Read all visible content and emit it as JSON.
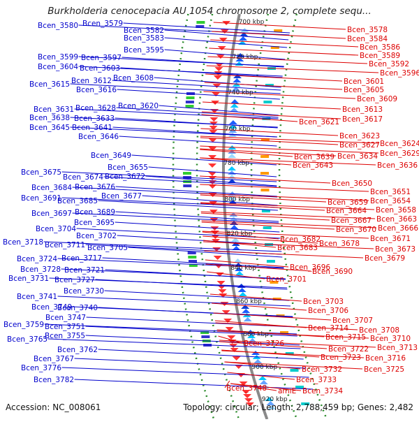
{
  "title": "Burkholderia cenocepacia AU 1054 chromosome 2, complete sequ...",
  "accession": "Accession: NC_008061",
  "topology": "Topology: circular; Length: 2,788,459 bp; Genes: 2,482",
  "colors": {
    "left_labels": "#0000cc",
    "right_labels": "#dd0000",
    "backbone": "#8a8a8a",
    "track_dots": "#2a8a2a"
  },
  "ticks": [
    "700 kbp",
    "720 kbp",
    "740 kbp",
    "760 kbp",
    "780 kbp",
    "800 kbp",
    "820 kbp",
    "840 kbp",
    "860 kbp",
    "880 kbp",
    "900 kbp",
    "920 kbp"
  ],
  "left_genes": [
    "Bcen_3580",
    "Bcen_3579",
    "Bcen_3582",
    "Bcen_3583",
    "Bcen_3595",
    "Bcen_3599",
    "Bcen_3597",
    "Bcen_3604",
    "Bcen_3603",
    "Bcen_3608",
    "Bcen_3615",
    "Bcen_3612",
    "Bcen_3616",
    "Bcen_3620",
    "Bcen_3631",
    "Bcen_3628",
    "Bcen_3638",
    "Bcen_3633",
    "Bcen_3645",
    "Bcen_3641",
    "Bcen_3646",
    "Bcen_3649",
    "Bcen_3655",
    "Bcen_3672",
    "Bcen_3675",
    "Bcen_3674",
    "Bcen_3684",
    "Bcen_3676",
    "Bcen_3691",
    "Bcen_3685",
    "Bcen_3677",
    "Bcen_3689",
    "Bcen_3697",
    "Bcen_3695",
    "Bcen_3704",
    "Bcen_3702",
    "Bcen_3718",
    "Bcen_3711",
    "Bcen_3705",
    "Bcen_3724",
    "Bcen_3717",
    "Bcen_3728",
    "Bcen_3721",
    "Bcen_3731",
    "Bcen_3727",
    "Bcen_3730",
    "Bcen_3741",
    "Bcen_3749",
    "Bcen_3740",
    "Bcen_3747",
    "Bcen_3759",
    "Bcen_3751",
    "Bcen_3765",
    "Bcen_3755",
    "Bcen_3762",
    "Bcen_3767",
    "Bcen_3776",
    "Bcen_3782"
  ],
  "right_genes": [
    "Bcen_3578",
    "Bcen_3584",
    "Bcen_3586",
    "Bcen_3589",
    "Bcen_3592",
    "Bcen_3596",
    "Bcen_3601",
    "Bcen_3605",
    "Bcen_3609",
    "Bcen_3613",
    "Bcen_3621",
    "Bcen_3617",
    "Bcen_3623",
    "Bcen_3627",
    "Bcen_3624",
    "Bcen_3634",
    "Bcen_3629",
    "Bcen_3639",
    "Bcen_3643",
    "Bcen_3636",
    "Bcen_3650",
    "Bcen_3651",
    "Bcen_3659",
    "Bcen_3654",
    "Bcen_3664",
    "Bcen_3658",
    "Bcen_3667",
    "Bcen_3663",
    "Bcen_3670",
    "Bcen_3666",
    "Bcen_3682",
    "Bcen_3671",
    "Bcen_3683",
    "Bcen_3678",
    "Bcen_3673",
    "Bcen_3679",
    "Bcen_3696",
    "Bcen_3690",
    "Bcen_3701",
    "Bcen_3703",
    "Bcen_3706",
    "Bcen_3707",
    "Bcen_3708",
    "Bcen_3714",
    "Bcen_3710",
    "Bcen_3715",
    "Bcen_3726",
    "Bcen_3713",
    "Bcen_3722",
    "Bcen_3716",
    "Bcen_3723",
    "Bcen_3725",
    "Bcen_3732",
    "Bcen_3733",
    "Bcen_3748",
    "amiE",
    "Bcen_3734"
  ]
}
